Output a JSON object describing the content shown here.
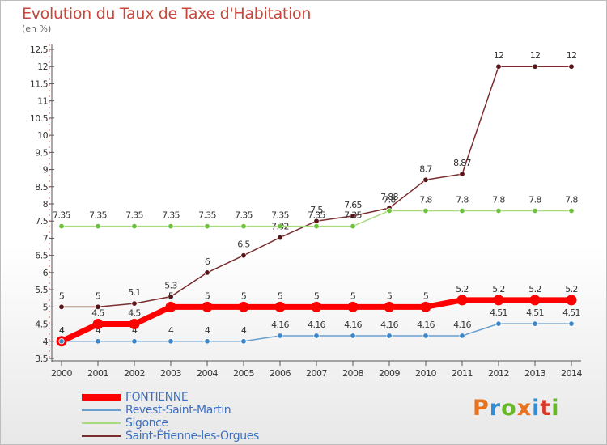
{
  "header": {
    "title": "Evolution du Taux de Taxe d'Habitation",
    "subtitle": "(en %)"
  },
  "logo": {
    "text": "Proxiti",
    "colors": [
      "#e8731c",
      "#2f8ed8",
      "#67b92a",
      "#e8731c",
      "#2f8ed8",
      "#d83a2a",
      "#67b92a"
    ]
  },
  "chart_data": {
    "type": "line",
    "title": "Evolution du Taux de Taxe d'Habitation",
    "subtitle": "(en %)",
    "xlabel": "",
    "ylabel": "",
    "x": [
      "2000",
      "2001",
      "2002",
      "2003",
      "2004",
      "2005",
      "2006",
      "2007",
      "2008",
      "2009",
      "2010",
      "2011",
      "2012",
      "2013",
      "2014"
    ],
    "ylim": [
      3.5,
      12.5
    ],
    "yticks": [
      "3.5",
      "4",
      "4.5",
      "5",
      "5.5",
      "6",
      "6.5",
      "7",
      "7.5",
      "8",
      "8.5",
      "9",
      "9.5",
      "10",
      "10.5",
      "11",
      "11.5",
      "12",
      "12.5"
    ],
    "grid": false,
    "legend_position": "bottom-left",
    "series": [
      {
        "name": "Saint-Étienne-les-Orgues",
        "color": "#7a2e30",
        "marker_color": "#5a1518",
        "values": [
          5,
          5,
          5.1,
          5.3,
          6,
          6.5,
          7.02,
          7.5,
          7.65,
          7.88,
          8.7,
          8.87,
          12,
          12,
          12
        ],
        "labels": [
          "5",
          "5",
          "5.1",
          "5.3",
          "6",
          "6.5",
          "7.02",
          "7.5",
          "7.65",
          "7.88",
          "8.7",
          "8.87",
          "12",
          "12",
          "12"
        ]
      },
      {
        "name": "Sigonce",
        "color": "#a9d97e",
        "marker_color": "#6cc23c",
        "values": [
          7.35,
          7.35,
          7.35,
          7.35,
          7.35,
          7.35,
          7.35,
          7.35,
          7.35,
          7.8,
          7.8,
          7.8,
          7.8,
          7.8,
          7.8
        ],
        "labels": [
          "7.35",
          "7.35",
          "7.35",
          "7.35",
          "7.35",
          "7.35",
          "7.35",
          "7.35",
          "7.35",
          "7.8",
          "7.8",
          "7.8",
          "7.8",
          "7.8",
          "7.8"
        ]
      },
      {
        "name": "Revest-Saint-Martin",
        "color": "#6aa0d0",
        "marker_color": "#3b86c9",
        "values": [
          4,
          4,
          4,
          4,
          4,
          4,
          4.16,
          4.16,
          4.16,
          4.16,
          4.16,
          4.16,
          4.51,
          4.51,
          4.51
        ],
        "labels": [
          "4",
          "4",
          "4",
          "4",
          "4",
          "4",
          "4.16",
          "4.16",
          "4.16",
          "4.16",
          "4.16",
          "4.16",
          "4.51",
          "4.51",
          "4.51"
        ]
      },
      {
        "name": "FONTIENNE",
        "color": "#ff0000",
        "marker_color": "#ff0000",
        "values": [
          4,
          4.5,
          4.5,
          5,
          5,
          5,
          5,
          5,
          5,
          5,
          5,
          5.2,
          5.2,
          5.2,
          5.2
        ],
        "labels": [
          "4",
          "4.5",
          "4.5",
          "5",
          "5",
          "5",
          "5",
          "5",
          "5",
          "5",
          "5",
          "5.2",
          "5.2",
          "5.2",
          "5.2"
        ]
      }
    ],
    "legend_order": [
      "FONTIENNE",
      "Revest-Saint-Martin",
      "Sigonce",
      "Saint-Étienne-les-Orgues"
    ]
  }
}
